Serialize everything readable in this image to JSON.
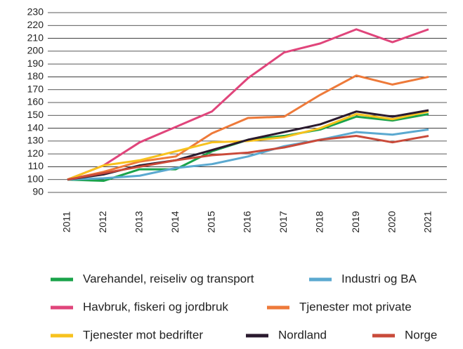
{
  "chart_data": {
    "type": "line",
    "categories": [
      "2011",
      "2012",
      "2013",
      "2014",
      "2015",
      "2016",
      "2017",
      "2018",
      "2019",
      "2020",
      "2021"
    ],
    "series": [
      {
        "name": "Varehandel, reiseliv og transport",
        "color": "#1aa34a",
        "values": [
          100,
          99,
          108,
          108,
          122,
          131,
          134,
          139,
          149,
          146,
          151
        ]
      },
      {
        "name": "Industri og BA",
        "color": "#5ba9d0",
        "values": [
          100,
          101,
          103,
          109,
          112,
          118,
          126,
          131,
          137,
          135,
          139
        ]
      },
      {
        "name": "Havbruk, fiskeri og jordbruk",
        "color": "#e0457b",
        "values": [
          100,
          111,
          129,
          141,
          153,
          179,
          199,
          206,
          217,
          207,
          217
        ]
      },
      {
        "name": "Tjenester mot private",
        "color": "#ee7a3a",
        "values": [
          100,
          106,
          114,
          118,
          136,
          148,
          149,
          166,
          181,
          174,
          180
        ]
      },
      {
        "name": "Tjenester mot bedrifter",
        "color": "#f7c21e",
        "values": [
          100,
          111,
          115,
          122,
          129,
          130,
          133,
          140,
          151,
          147,
          153
        ]
      },
      {
        "name": "Nordland",
        "color": "#2a1a2e",
        "values": [
          100,
          104,
          111,
          115,
          123,
          131,
          137,
          143,
          153,
          149,
          154
        ]
      },
      {
        "name": "Norge",
        "color": "#c94a3a",
        "values": [
          100,
          105,
          110,
          115,
          119,
          121,
          125,
          131,
          134,
          129,
          134
        ]
      }
    ],
    "ylim": [
      90,
      230
    ],
    "yticks": [
      90,
      100,
      110,
      120,
      130,
      140,
      150,
      160,
      170,
      180,
      190,
      200,
      210,
      220,
      230
    ],
    "grid": true
  }
}
